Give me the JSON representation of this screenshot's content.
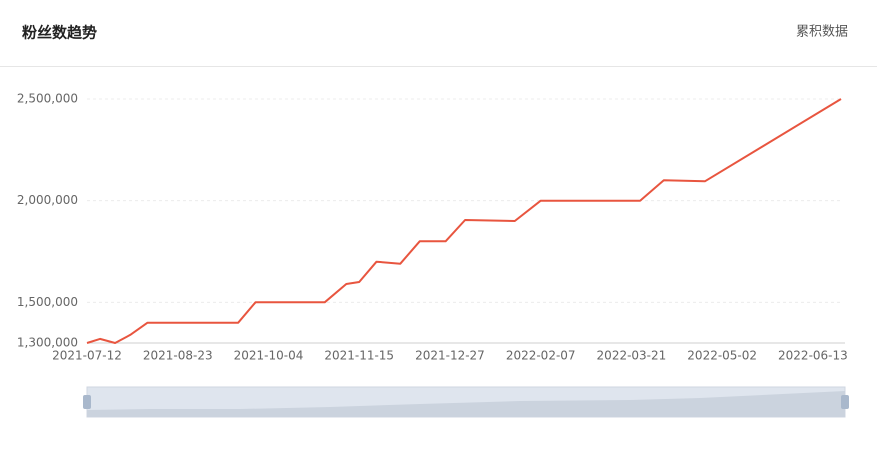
{
  "header": {
    "title": "粉丝数趋势",
    "action": "累积数据"
  },
  "chart_data": {
    "type": "line",
    "x": [
      "2021-07-12",
      "2021-07-18",
      "2021-07-25",
      "2021-08-01",
      "2021-08-09",
      "2021-09-16",
      "2021-09-20",
      "2021-09-28",
      "2021-10-26",
      "2021-10-30",
      "2021-11-09",
      "2021-11-15",
      "2021-11-23",
      "2021-12-04",
      "2021-12-13",
      "2021-12-25",
      "2022-01-03",
      "2022-01-26",
      "2022-02-07",
      "2022-03-25",
      "2022-04-05",
      "2022-04-24",
      "2022-06-26"
    ],
    "series": [
      {
        "name": "粉丝数",
        "color": "#e8553f",
        "values": [
          1300000,
          1320000,
          1300000,
          1340000,
          1400000,
          1400000,
          1400000,
          1500000,
          1500000,
          1500000,
          1590000,
          1600000,
          1700000,
          1690000,
          1800000,
          1800000,
          1905000,
          1900000,
          2000000,
          2000000,
          2100000,
          2095000,
          2500000
        ]
      }
    ],
    "xlim": [
      "2021-07-12",
      "2022-06-26"
    ],
    "xticks": [
      "2021-07-12",
      "2021-08-23",
      "2021-10-04",
      "2021-11-15",
      "2021-12-27",
      "2022-02-07",
      "2022-03-21",
      "2022-05-02",
      "2022-06-13"
    ],
    "ylim": [
      1300000,
      2500000
    ],
    "yticks": [
      {
        "value": 1300000,
        "label": "1,300,000"
      },
      {
        "value": 1500000,
        "label": "1,500,000"
      },
      {
        "value": 2000000,
        "label": "2,000,000"
      },
      {
        "value": 2500000,
        "label": "2,500,000"
      }
    ],
    "grid": true
  }
}
